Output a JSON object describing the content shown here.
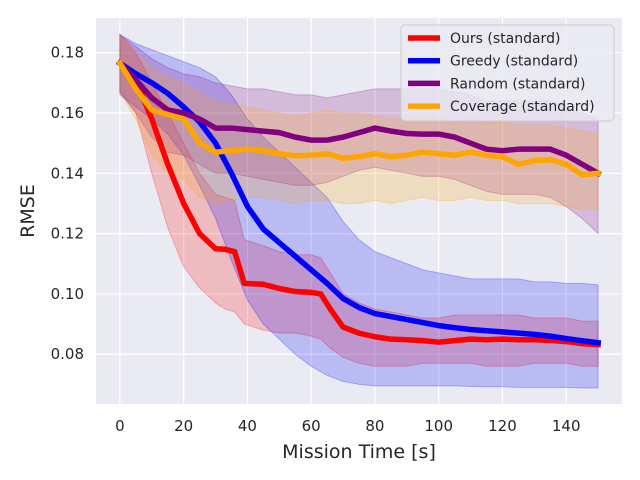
{
  "chart_data": {
    "type": "line",
    "title": "",
    "xlabel": "Mission Time [s]",
    "ylabel": "RMSE",
    "xlim": [
      -7.5,
      157.5
    ],
    "ylim": [
      0.0635,
      0.1915
    ],
    "xticks": [
      0,
      20,
      40,
      60,
      80,
      100,
      120,
      140
    ],
    "yticks": [
      0.08,
      0.1,
      0.12,
      0.14,
      0.16,
      0.18
    ],
    "ytick_labels": [
      "0.08",
      "0.10",
      "0.12",
      "0.14",
      "0.16",
      "0.18"
    ],
    "grid": true,
    "legend_position": "top-right",
    "series": [
      {
        "name": "Ours (standard)",
        "color": "#ff0000",
        "x": [
          0,
          5,
          10,
          15,
          20,
          25,
          30,
          33,
          36,
          39,
          45,
          50,
          55,
          60,
          63,
          66,
          70,
          75,
          80,
          85,
          90,
          95,
          100,
          105,
          110,
          115,
          120,
          125,
          130,
          135,
          140,
          145,
          150
        ],
        "mean": [
          0.1765,
          0.171,
          0.158,
          0.143,
          0.13,
          0.12,
          0.115,
          0.1148,
          0.114,
          0.1035,
          0.1032,
          0.1018,
          0.1008,
          0.1005,
          0.1,
          0.095,
          0.089,
          0.087,
          0.0858,
          0.085,
          0.0848,
          0.0845,
          0.084,
          0.0845,
          0.085,
          0.0848,
          0.085,
          0.0848,
          0.0848,
          0.0846,
          0.0842,
          0.0835,
          0.0832
        ],
        "lower": [
          0.167,
          0.16,
          0.14,
          0.122,
          0.109,
          0.102,
          0.097,
          0.095,
          0.094,
          0.09,
          0.088,
          0.087,
          0.087,
          0.086,
          0.085,
          0.082,
          0.079,
          0.077,
          0.076,
          0.076,
          0.076,
          0.077,
          0.077,
          0.077,
          0.077,
          0.076,
          0.076,
          0.076,
          0.077,
          0.077,
          0.077,
          0.076,
          0.076
        ],
        "upper": [
          0.186,
          0.18,
          0.17,
          0.16,
          0.15,
          0.14,
          0.133,
          0.132,
          0.131,
          0.118,
          0.116,
          0.114,
          0.113,
          0.113,
          0.112,
          0.107,
          0.1,
          0.097,
          0.095,
          0.094,
          0.093,
          0.092,
          0.092,
          0.093,
          0.093,
          0.093,
          0.093,
          0.093,
          0.092,
          0.092,
          0.092,
          0.091,
          0.091
        ]
      },
      {
        "name": "Greedy (standard)",
        "color": "#0000ff",
        "x": [
          0,
          5,
          10,
          15,
          20,
          25,
          30,
          35,
          40,
          45,
          50,
          55,
          60,
          65,
          70,
          75,
          80,
          85,
          90,
          95,
          100,
          105,
          110,
          115,
          120,
          125,
          130,
          135,
          140,
          145,
          150
        ],
        "mean": [
          0.1765,
          0.173,
          0.17,
          0.1665,
          0.162,
          0.157,
          0.15,
          0.14,
          0.129,
          0.1215,
          0.117,
          0.1125,
          0.108,
          0.1035,
          0.0985,
          0.0955,
          0.0935,
          0.0925,
          0.0915,
          0.0905,
          0.0895,
          0.0888,
          0.0882,
          0.0878,
          0.0874,
          0.087,
          0.0866,
          0.086,
          0.0852,
          0.0845,
          0.0838
        ],
        "lower": [
          0.166,
          0.162,
          0.158,
          0.153,
          0.146,
          0.136,
          0.125,
          0.111,
          0.098,
          0.09,
          0.085,
          0.08,
          0.076,
          0.073,
          0.071,
          0.07,
          0.0695,
          0.0695,
          0.0695,
          0.0695,
          0.0695,
          0.0695,
          0.0693,
          0.0692,
          0.0692,
          0.069,
          0.069,
          0.069,
          0.069,
          0.0688,
          0.0688
        ],
        "upper": [
          0.186,
          0.183,
          0.181,
          0.179,
          0.177,
          0.175,
          0.172,
          0.166,
          0.158,
          0.152,
          0.147,
          0.142,
          0.137,
          0.132,
          0.124,
          0.118,
          0.114,
          0.112,
          0.11,
          0.108,
          0.107,
          0.106,
          0.105,
          0.105,
          0.105,
          0.105,
          0.104,
          0.104,
          0.1035,
          0.1035,
          0.103
        ]
      },
      {
        "name": "Random (standard)",
        "color": "#800080",
        "x": [
          0,
          5,
          10,
          15,
          20,
          25,
          30,
          35,
          40,
          45,
          50,
          55,
          60,
          65,
          70,
          75,
          80,
          85,
          90,
          95,
          100,
          105,
          110,
          115,
          120,
          125,
          130,
          135,
          140,
          145,
          150
        ],
        "mean": [
          0.1765,
          0.171,
          0.165,
          0.161,
          0.16,
          0.158,
          0.155,
          0.155,
          0.1545,
          0.154,
          0.1535,
          0.152,
          0.151,
          0.151,
          0.152,
          0.1535,
          0.155,
          0.154,
          0.1532,
          0.153,
          0.153,
          0.152,
          0.15,
          0.148,
          0.1475,
          0.148,
          0.148,
          0.148,
          0.146,
          0.143,
          0.14
        ],
        "lower": [
          0.167,
          0.16,
          0.152,
          0.147,
          0.146,
          0.143,
          0.14,
          0.14,
          0.139,
          0.138,
          0.137,
          0.136,
          0.136,
          0.137,
          0.139,
          0.141,
          0.142,
          0.141,
          0.14,
          0.139,
          0.139,
          0.138,
          0.136,
          0.134,
          0.133,
          0.133,
          0.133,
          0.132,
          0.129,
          0.125,
          0.12
        ],
        "upper": [
          0.186,
          0.182,
          0.178,
          0.175,
          0.173,
          0.172,
          0.17,
          0.169,
          0.168,
          0.168,
          0.167,
          0.166,
          0.166,
          0.165,
          0.166,
          0.167,
          0.168,
          0.168,
          0.168,
          0.168,
          0.168,
          0.167,
          0.166,
          0.164,
          0.164,
          0.164,
          0.164,
          0.164,
          0.162,
          0.16,
          0.158
        ]
      },
      {
        "name": "Coverage (standard)",
        "color": "#ffa500",
        "x": [
          0,
          5,
          10,
          15,
          20,
          25,
          30,
          35,
          40,
          45,
          50,
          55,
          60,
          65,
          70,
          75,
          80,
          85,
          90,
          95,
          100,
          105,
          110,
          115,
          120,
          125,
          130,
          135,
          140,
          145,
          150
        ],
        "mean": [
          0.1765,
          0.168,
          0.161,
          0.1595,
          0.158,
          0.15,
          0.147,
          0.1475,
          0.148,
          0.1475,
          0.1465,
          0.1458,
          0.146,
          0.1465,
          0.145,
          0.1455,
          0.1465,
          0.1455,
          0.146,
          0.147,
          0.1465,
          0.146,
          0.147,
          0.146,
          0.1455,
          0.143,
          0.1442,
          0.1445,
          0.143,
          0.1395,
          0.14
        ],
        "lower": [
          0.167,
          0.158,
          0.146,
          0.14,
          0.138,
          0.132,
          0.13,
          0.131,
          0.132,
          0.132,
          0.131,
          0.13,
          0.131,
          0.131,
          0.13,
          0.13,
          0.131,
          0.13,
          0.131,
          0.132,
          0.131,
          0.131,
          0.132,
          0.131,
          0.131,
          0.13,
          0.13,
          0.13,
          0.129,
          0.128,
          0.128
        ],
        "upper": [
          0.186,
          0.18,
          0.175,
          0.172,
          0.17,
          0.167,
          0.164,
          0.163,
          0.162,
          0.161,
          0.16,
          0.159,
          0.16,
          0.161,
          0.16,
          0.16,
          0.159,
          0.158,
          0.158,
          0.159,
          0.158,
          0.157,
          0.158,
          0.157,
          0.157,
          0.156,
          0.156,
          0.156,
          0.155,
          0.154,
          0.153
        ]
      }
    ]
  }
}
